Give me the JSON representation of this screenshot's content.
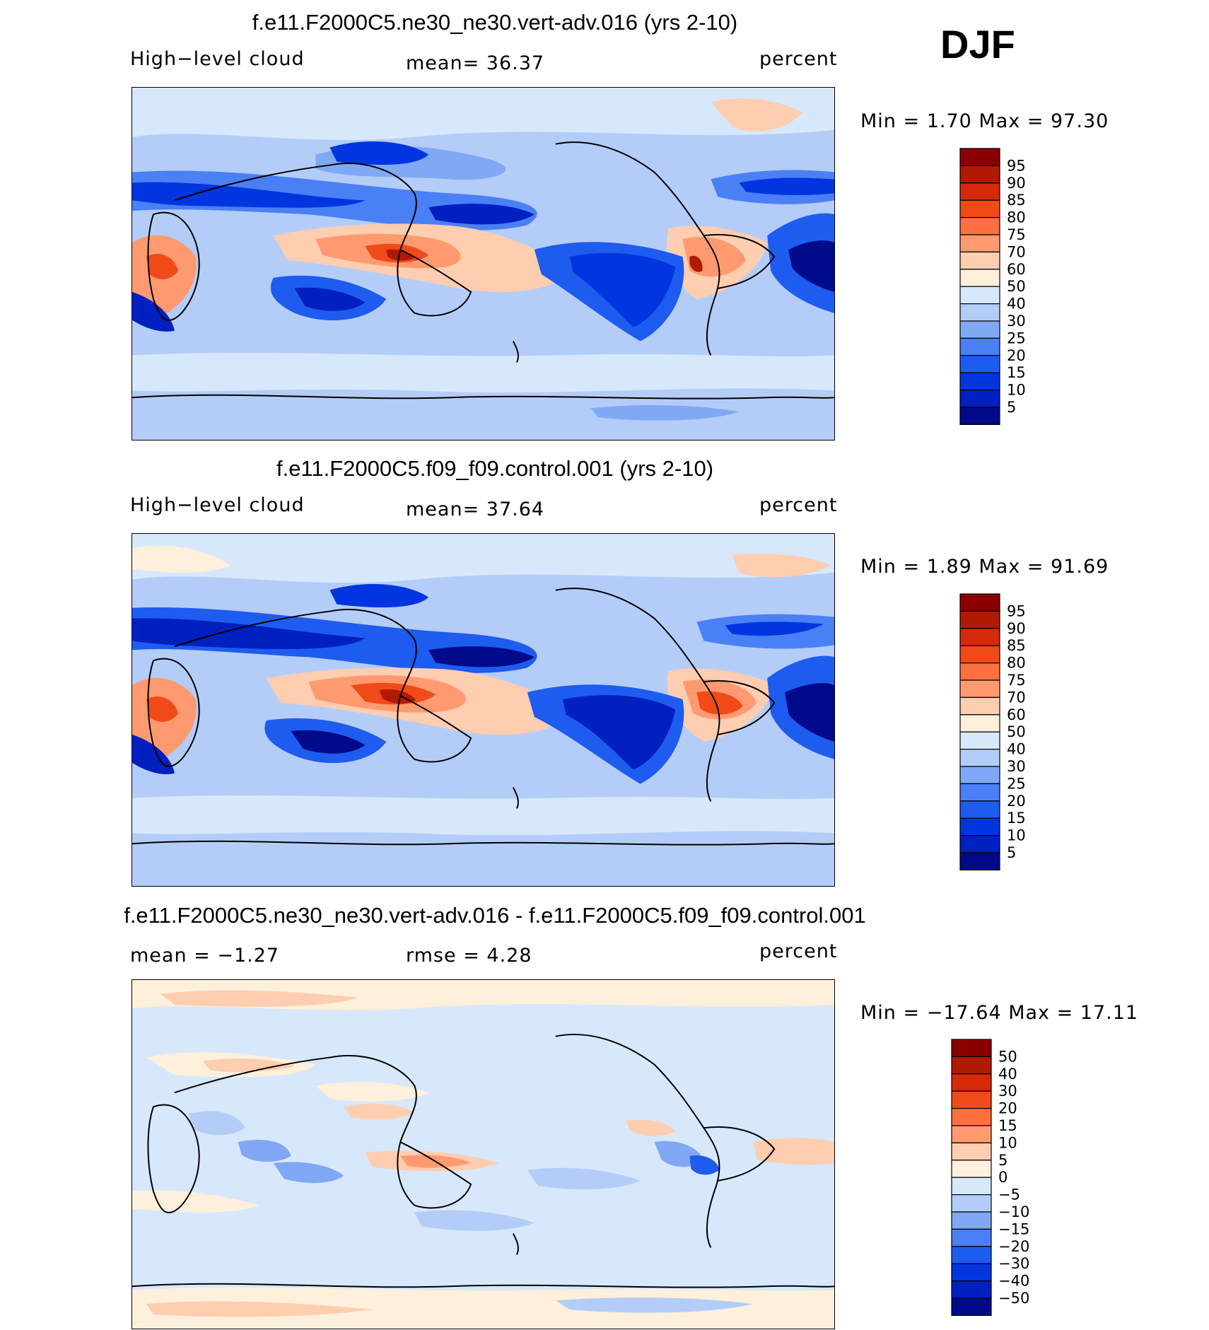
{
  "season": "DJF",
  "colors": {
    "deep_navy": "#000a8a",
    "deep_blue": "#0020c0",
    "strong_blue": "#0035e0",
    "mid_blue": "#1e5cf0",
    "light_blue_1": "#4a80f5",
    "light_blue_2": "#80a8f5",
    "pale_blue": "#b4cdf8",
    "ice_blue": "#d8e8fc",
    "cream": "#fff0dc",
    "peach": "#ffcdb0",
    "salmon": "#ff9a70",
    "orange": "#ff7040",
    "red_orange": "#f04a18",
    "red": "#d42a0a",
    "dark_red": "#b01a00",
    "maroon": "#8a0000",
    "coastline": "#000000"
  },
  "panels": [
    {
      "id": "test",
      "title": "f.e11.F2000C5.ne30_ne30.vert-adv.016 (yrs 2-10)",
      "left_label": "High−level cloud",
      "center_label": "mean=   36.37",
      "units": "percent",
      "minmax": "Min =    1.70  Max =   97.30",
      "colorbar_labels": [
        "95",
        "90",
        "85",
        "80",
        "75",
        "70",
        "60",
        "50",
        "40",
        "30",
        "25",
        "20",
        "15",
        "10",
        "5"
      ],
      "colorbar_colors": [
        "#8a0000",
        "#b01a00",
        "#d42a0a",
        "#f04a18",
        "#ff7040",
        "#ff9a70",
        "#ffcdb0",
        "#fff0dc",
        "#d8e8fc",
        "#b4cdf8",
        "#80a8f5",
        "#4a80f5",
        "#1e5cf0",
        "#0035e0",
        "#0020c0",
        "#000a8a"
      ]
    },
    {
      "id": "control",
      "title": "f.e11.F2000C5.f09_f09.control.001 (yrs 2-10)",
      "left_label": "High−level cloud",
      "center_label": "mean=   37.64",
      "units": "percent",
      "minmax": "Min =    1.89  Max =   91.69",
      "colorbar_labels": [
        "95",
        "90",
        "85",
        "80",
        "75",
        "70",
        "60",
        "50",
        "40",
        "30",
        "25",
        "20",
        "15",
        "10",
        "5"
      ],
      "colorbar_colors": [
        "#8a0000",
        "#b01a00",
        "#d42a0a",
        "#f04a18",
        "#ff7040",
        "#ff9a70",
        "#ffcdb0",
        "#fff0dc",
        "#d8e8fc",
        "#b4cdf8",
        "#80a8f5",
        "#4a80f5",
        "#1e5cf0",
        "#0035e0",
        "#0020c0",
        "#000a8a"
      ]
    },
    {
      "id": "diff",
      "title": "f.e11.F2000C5.ne30_ne30.vert-adv.016 - f.e11.F2000C5.f09_f09.control.001",
      "left_label": "mean =   −1.27",
      "center_label": "rmse =    4.28",
      "units": "percent",
      "minmax": "Min = −17.64  Max =   17.11",
      "colorbar_labels": [
        "50",
        "40",
        "30",
        "20",
        "15",
        "10",
        "5",
        "0",
        "−5",
        "−10",
        "−15",
        "−20",
        "−30",
        "−40",
        "−50"
      ],
      "colorbar_colors": [
        "#8a0000",
        "#b01a00",
        "#d42a0a",
        "#f04a18",
        "#ff7040",
        "#ff9a70",
        "#ffcdb0",
        "#fff0dc",
        "#d8e8fc",
        "#b4cdf8",
        "#80a8f5",
        "#4a80f5",
        "#1e5cf0",
        "#0035e0",
        "#0020c0",
        "#000a8a"
      ]
    }
  ]
}
